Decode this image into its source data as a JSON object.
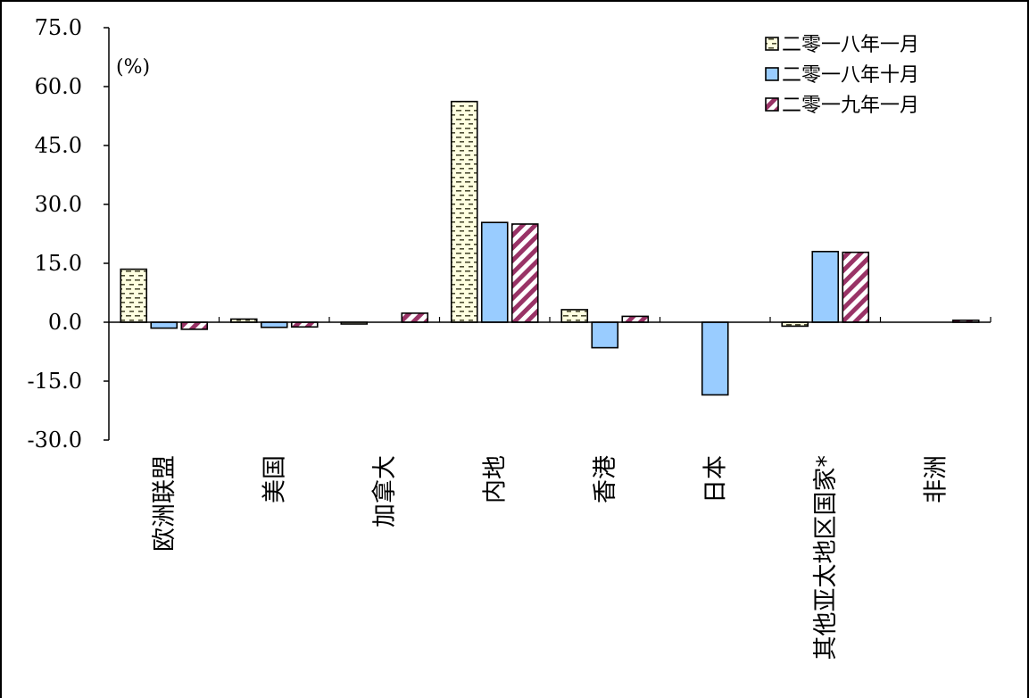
{
  "chart_data": {
    "type": "bar",
    "unit_label": "(%)",
    "categories": [
      "欧洲联盟",
      "美国",
      "加拿大",
      "内地",
      "香港",
      "日本",
      "其他亚太地区国家*",
      "非洲"
    ],
    "series": [
      {
        "name": "二零一八年一月",
        "color": "#ffffe0",
        "pattern": "dash",
        "values": [
          13.5,
          0.8,
          -0.2,
          56.2,
          3.2,
          null,
          -1.0,
          null
        ]
      },
      {
        "name": "二零一八年十月",
        "color": "#99ccff",
        "pattern": "solid",
        "values": [
          -1.5,
          -1.3,
          null,
          25.4,
          -6.5,
          -18.5,
          18.0,
          null
        ]
      },
      {
        "name": "二零一九年一月",
        "color": "#993366",
        "pattern": "diagonal",
        "values": [
          -1.8,
          -1.2,
          2.3,
          25.0,
          1.5,
          null,
          17.8,
          0.5
        ]
      }
    ],
    "yticks": [
      "75.0",
      "60.0",
      "45.0",
      "30.0",
      "15.0",
      "0.0",
      "-15.0",
      "-30.0"
    ],
    "ylim": [
      -30,
      75
    ],
    "ystep": 15,
    "grid": false,
    "legend_position": "top-right"
  }
}
